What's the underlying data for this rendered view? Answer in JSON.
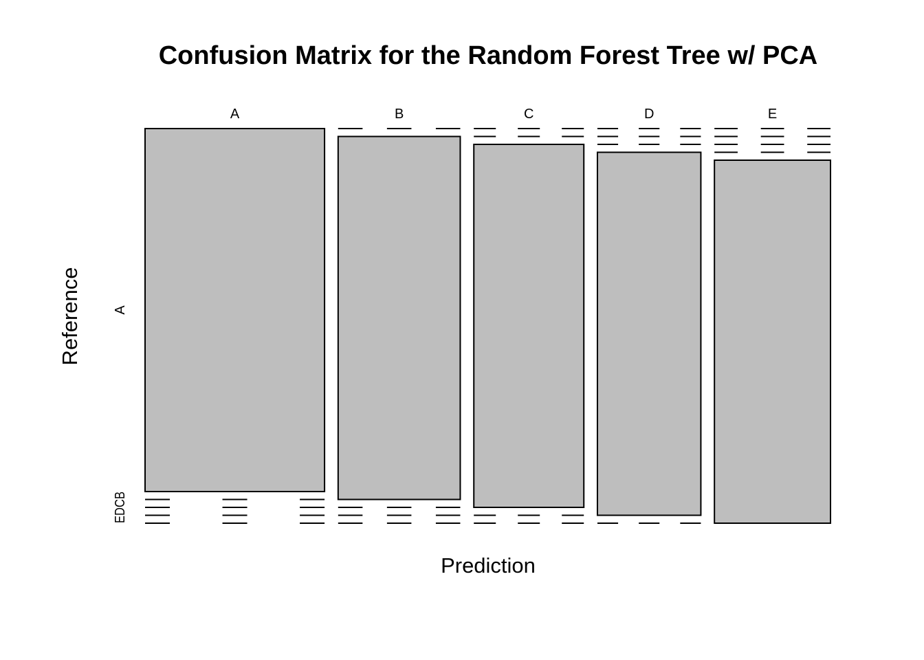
{
  "chart_data": {
    "type": "mosaic",
    "title": "Confusion Matrix for the Random Forest Tree w/ PCA",
    "xlabel": "Prediction",
    "ylabel": "Reference",
    "x_categories": [
      "A",
      "B",
      "C",
      "D",
      "E"
    ],
    "y_categories": [
      "A",
      "B",
      "C",
      "D",
      "E"
    ],
    "y_tick_labels": [
      "A",
      "B",
      "C",
      "D",
      "E"
    ],
    "y_tick_label_text": "EDCB",
    "column_proportions": [
      0.2844,
      0.1935,
      0.1743,
      0.1639,
      0.1839
    ],
    "cells": [
      [
        1.0,
        0.0,
        0.0,
        0.0,
        0.0
      ],
      [
        0.0,
        1.0,
        0.0,
        0.0,
        0.0
      ],
      [
        0.0,
        0.0,
        1.0,
        0.0,
        0.0
      ],
      [
        0.0,
        0.0,
        0.0,
        1.0,
        0.0
      ],
      [
        0.0,
        0.0,
        0.0,
        0.0,
        1.0
      ]
    ],
    "colors": {
      "tile_fill": "#bebebe",
      "stroke": "#000000"
    },
    "grid": false,
    "legend": "none"
  }
}
